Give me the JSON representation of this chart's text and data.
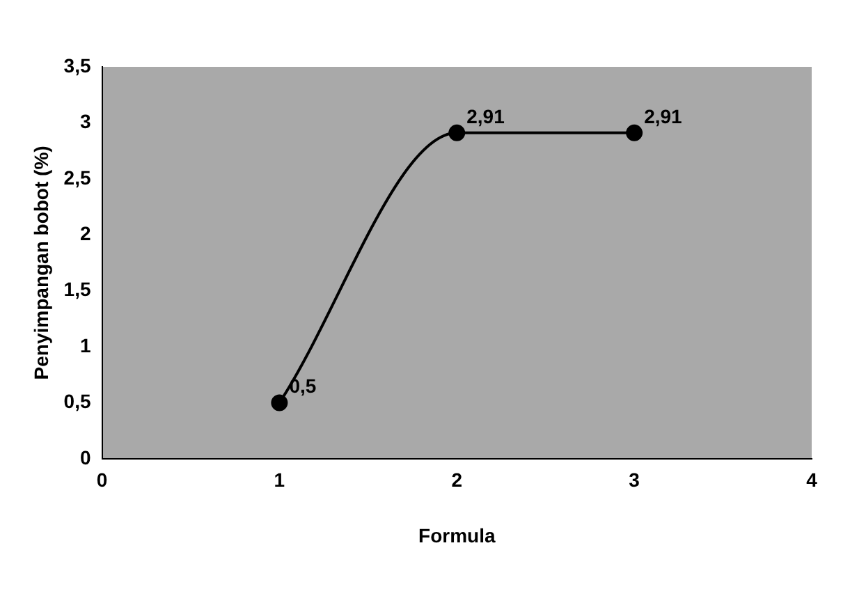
{
  "chart_data": {
    "type": "line",
    "xlabel": "Formula",
    "ylabel": "Penyimpangan bobot (%)",
    "x": [
      1,
      2,
      3
    ],
    "series": [
      {
        "color": "#000000",
        "values": [
          0.5,
          2.91,
          2.91
        ],
        "value_labels": [
          "0,5",
          "2,91",
          "2,91"
        ]
      }
    ],
    "xlim": [
      0,
      4
    ],
    "xticks": [
      0,
      1,
      2,
      3,
      4
    ],
    "ylim": [
      0,
      3.5
    ],
    "yticks": [
      0,
      {
        "value": 0.5,
        "label": "0,5"
      },
      1,
      {
        "value": 1.5,
        "label": "1,5"
      },
      2,
      {
        "value": 2.5,
        "label": "2,5"
      },
      3,
      {
        "value": 3.5,
        "label": "3,5"
      }
    ],
    "grid": false,
    "legend": false,
    "marker": "circle",
    "line_style": "solid"
  }
}
